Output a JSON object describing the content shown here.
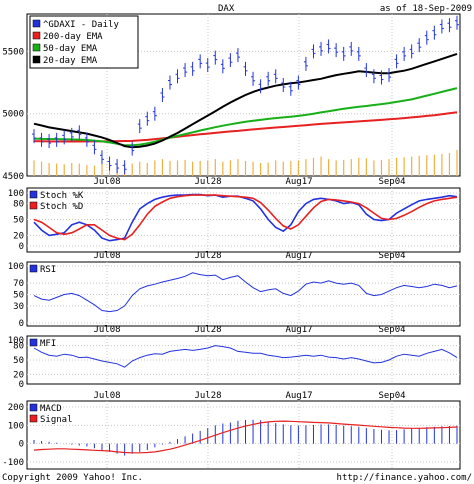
{
  "header": {
    "ticker": "DAX",
    "date_text": "as of 18-Sep-2009"
  },
  "footer": {
    "copyright": "Copyright 2009 Yahoo! Inc.",
    "url": "http://finance.yahoo.com/"
  },
  "colors": {
    "price": "#2233dd",
    "ema200": "#e82020",
    "ema50": "#18b018",
    "ema20": "#000000",
    "volume": "#f0b040",
    "stoch_k": "#2233dd",
    "stoch_d": "#e82020",
    "rsi": "#2233dd",
    "mfi": "#2233dd",
    "macd": "#2233dd",
    "signal": "#e82020",
    "grid": "#c8c8c8"
  },
  "x_labels": [
    "Jul08",
    "Jul28",
    "Aug17",
    "Sep04"
  ],
  "chart_data": [
    {
      "type": "line",
      "panel": "price",
      "ylim": [
        4500,
        5800
      ],
      "y_ticks": [
        "5500",
        "5000",
        "4500"
      ],
      "grid": true,
      "legend_position": "top-left",
      "series": [
        {
          "name": "^GDAXI - Daily",
          "values": [
            4820,
            4790,
            4780,
            4790,
            4810,
            4830,
            4850,
            4790,
            4730,
            4650,
            4600,
            4580,
            4570,
            4720,
            4900,
            4960,
            5000,
            5150,
            5250,
            5300,
            5350,
            5360,
            5420,
            5390,
            5450,
            5380,
            5430,
            5470,
            5360,
            5280,
            5220,
            5280,
            5300,
            5230,
            5200,
            5250,
            5400,
            5500,
            5520,
            5540,
            5510,
            5480,
            5520,
            5480,
            5350,
            5300,
            5290,
            5310,
            5420,
            5480,
            5500,
            5550,
            5610,
            5650,
            5700,
            5710,
            5730
          ]
        },
        {
          "name": "200-day EMA",
          "values": [
            4780,
            4779,
            4778,
            4777,
            4777,
            4777,
            4777,
            4778,
            4778,
            4778,
            4779,
            4780,
            4781,
            4782,
            4786,
            4790,
            4796,
            4802,
            4808,
            4815,
            4822,
            4828,
            4835,
            4840,
            4846,
            4852,
            4858,
            4862,
            4868,
            4874,
            4879,
            4884,
            4889,
            4893,
            4898,
            4903,
            4908,
            4913,
            4918,
            4922,
            4926,
            4930,
            4934,
            4938,
            4942,
            4946,
            4950,
            4955,
            4960,
            4965,
            4970,
            4976,
            4982,
            4988,
            4996,
            5004,
            5012
          ]
        },
        {
          "name": "50-day EMA",
          "values": [
            4800,
            4798,
            4797,
            4796,
            4795,
            4794,
            4792,
            4789,
            4784,
            4778,
            4770,
            4758,
            4746,
            4746,
            4752,
            4762,
            4775,
            4792,
            4808,
            4822,
            4836,
            4850,
            4865,
            4878,
            4892,
            4904,
            4915,
            4925,
            4935,
            4943,
            4950,
            4958,
            4965,
            4970,
            4976,
            4982,
            4990,
            5000,
            5010,
            5020,
            5030,
            5040,
            5048,
            5056,
            5062,
            5070,
            5077,
            5085,
            5095,
            5105,
            5115,
            5130,
            5145,
            5160,
            5175,
            5190,
            5205
          ]
        },
        {
          "name": "20-day EMA",
          "values": [
            4920,
            4905,
            4890,
            4880,
            4870,
            4860,
            4850,
            4840,
            4825,
            4810,
            4790,
            4765,
            4740,
            4730,
            4735,
            4745,
            4760,
            4785,
            4815,
            4845,
            4880,
            4915,
            4950,
            4985,
            5020,
            5055,
            5090,
            5120,
            5150,
            5175,
            5195,
            5210,
            5225,
            5235,
            5245,
            5250,
            5260,
            5270,
            5280,
            5295,
            5310,
            5320,
            5330,
            5340,
            5335,
            5330,
            5325,
            5325,
            5335,
            5345,
            5360,
            5380,
            5400,
            5420,
            5440,
            5460,
            5480
          ]
        }
      ],
      "volume": [
        60,
        55,
        50,
        48,
        45,
        50,
        48,
        42,
        40,
        45,
        50,
        52,
        45,
        48,
        55,
        50,
        60,
        65,
        58,
        60,
        62,
        55,
        58,
        60,
        65,
        55,
        60,
        65,
        58,
        55,
        50,
        52,
        60,
        55,
        58,
        60,
        65,
        70,
        75,
        65,
        60,
        62,
        65,
        70,
        68,
        60,
        62,
        65,
        70,
        72,
        75,
        78,
        80,
        82,
        85,
        88,
        100
      ]
    },
    {
      "type": "line",
      "panel": "stochastic",
      "ylim": [
        0,
        100
      ],
      "y_ticks": [
        "100",
        "80",
        "50",
        "20",
        "0"
      ],
      "grid": true,
      "legend_position": "top-left",
      "series": [
        {
          "name": "Stoch %K",
          "values": [
            45,
            30,
            20,
            22,
            25,
            40,
            45,
            40,
            30,
            15,
            10,
            12,
            15,
            45,
            70,
            80,
            88,
            92,
            95,
            96,
            96,
            97,
            97,
            95,
            96,
            92,
            94,
            94,
            90,
            85,
            70,
            50,
            35,
            28,
            40,
            65,
            80,
            88,
            90,
            88,
            85,
            80,
            82,
            78,
            60,
            50,
            48,
            50,
            62,
            70,
            78,
            85,
            88,
            90,
            92,
            95,
            93
          ]
        },
        {
          "name": "Stoch %D",
          "values": [
            50,
            45,
            35,
            25,
            22,
            25,
            32,
            40,
            40,
            30,
            20,
            15,
            12,
            22,
            40,
            60,
            75,
            83,
            90,
            93,
            95,
            96,
            96,
            96,
            96,
            95,
            94,
            93,
            92,
            90,
            82,
            68,
            52,
            38,
            32,
            40,
            56,
            72,
            84,
            88,
            87,
            85,
            83,
            80,
            72,
            62,
            52,
            50,
            52,
            58,
            65,
            73,
            80,
            85,
            88,
            90,
            92
          ]
        }
      ]
    },
    {
      "type": "line",
      "panel": "rsi",
      "ylim": [
        0,
        100
      ],
      "y_ticks": [
        "100",
        "70",
        "50",
        "30",
        "0"
      ],
      "grid": true,
      "legend_position": "top-left",
      "series": [
        {
          "name": "RSI",
          "values": [
            48,
            42,
            40,
            45,
            50,
            52,
            48,
            40,
            32,
            22,
            20,
            22,
            30,
            48,
            60,
            65,
            68,
            72,
            75,
            78,
            82,
            88,
            85,
            83,
            84,
            76,
            80,
            83,
            72,
            62,
            55,
            58,
            60,
            52,
            48,
            56,
            68,
            72,
            70,
            74,
            70,
            68,
            70,
            66,
            52,
            48,
            50,
            56,
            62,
            66,
            64,
            62,
            64,
            68,
            66,
            62,
            65
          ]
        }
      ]
    },
    {
      "type": "line",
      "panel": "mfi",
      "ylim": [
        0,
        100
      ],
      "y_ticks": [
        "100",
        "80",
        "50",
        "20",
        "0"
      ],
      "grid": true,
      "legend_position": "top-left",
      "series": [
        {
          "name": "MFI",
          "values": [
            75,
            66,
            60,
            58,
            62,
            60,
            55,
            56,
            52,
            48,
            45,
            42,
            35,
            48,
            55,
            60,
            63,
            62,
            68,
            70,
            72,
            70,
            72,
            75,
            80,
            78,
            75,
            68,
            66,
            64,
            64,
            60,
            58,
            55,
            56,
            58,
            60,
            58,
            60,
            56,
            55,
            52,
            55,
            52,
            48,
            44,
            45,
            50,
            58,
            62,
            60,
            58,
            64,
            68,
            72,
            65,
            55
          ]
        }
      ]
    },
    {
      "type": "bar",
      "panel": "macd",
      "ylim": [
        -100,
        200
      ],
      "y_ticks": [
        "200",
        "100",
        "0",
        "-100"
      ],
      "grid": true,
      "legend_position": "top-left",
      "series": [
        {
          "name": "MACD",
          "values": [
            20,
            15,
            10,
            5,
            0,
            -5,
            -10,
            -15,
            -25,
            -35,
            -45,
            -55,
            -65,
            -55,
            -45,
            -35,
            -20,
            -5,
            10,
            25,
            40,
            55,
            70,
            85,
            100,
            110,
            115,
            125,
            130,
            130,
            128,
            120,
            112,
            105,
            100,
            98,
            100,
            102,
            105,
            105,
            102,
            98,
            95,
            92,
            85,
            80,
            76,
            73,
            74,
            78,
            82,
            86,
            90,
            92,
            95,
            96,
            98
          ]
        },
        {
          "name": "Signal",
          "values": [
            -35,
            -32,
            -30,
            -28,
            -28,
            -30,
            -32,
            -34,
            -36,
            -38,
            -40,
            -45,
            -48,
            -50,
            -50,
            -48,
            -45,
            -38,
            -30,
            -20,
            -8,
            5,
            18,
            32,
            46,
            60,
            73,
            85,
            96,
            105,
            113,
            119,
            122,
            123,
            122,
            120,
            118,
            116,
            115,
            113,
            110,
            107,
            104,
            101,
            98,
            95,
            92,
            89,
            87,
            85,
            84,
            84,
            85,
            86,
            87,
            89,
            91
          ]
        }
      ]
    }
  ]
}
